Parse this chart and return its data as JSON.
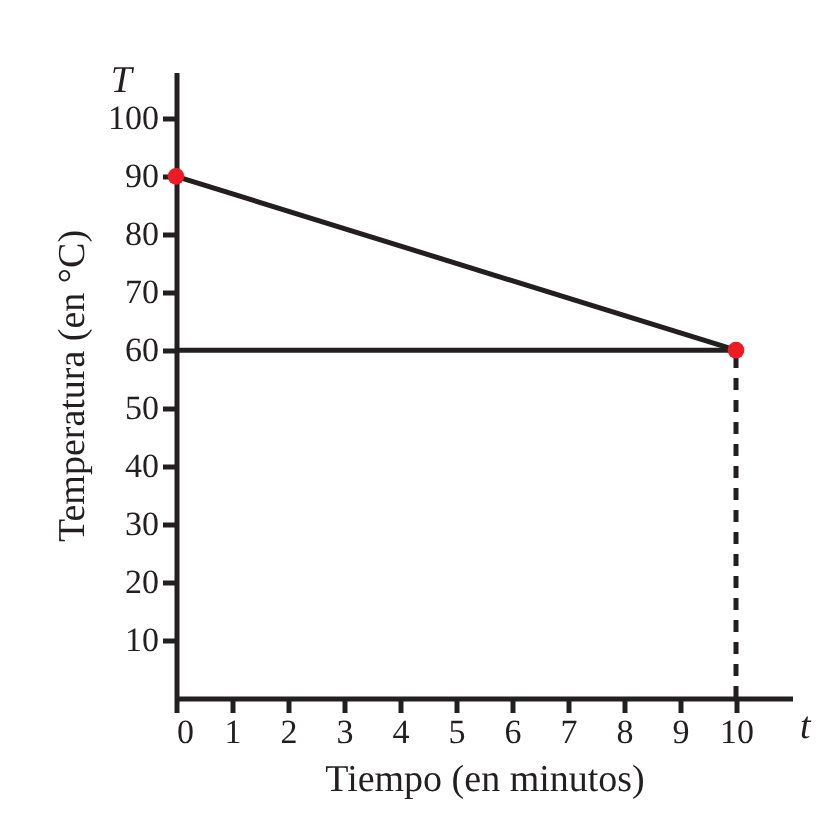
{
  "chart_data": {
    "type": "line",
    "xlabel": "Tiempo (en minutos)",
    "ylabel": "Temperatura (en °C)",
    "annotations": [
      "T",
      "t"
    ],
    "xlim": [
      0,
      11
    ],
    "ylim": [
      0,
      108
    ],
    "xticks": [
      0,
      1,
      2,
      3,
      4,
      5,
      6,
      7,
      8,
      9,
      10
    ],
    "yticks": [
      10,
      20,
      30,
      40,
      50,
      60,
      70,
      80,
      90,
      100
    ],
    "grid": false,
    "x": [
      0,
      10
    ],
    "series": [
      {
        "values": [
          90,
          60
        ],
        "color": "#231f20",
        "line_style": "solid"
      },
      {
        "values": [
          60,
          60
        ],
        "color": "#231f20",
        "line_style": "solid"
      },
      {
        "x": [
          10,
          10
        ],
        "values": [
          0,
          60
        ],
        "color": "#231f20",
        "line_style": "dashed"
      },
      {
        "type": "scatter",
        "values": [
          90,
          60
        ],
        "color": "#ed1c24",
        "marker": "circle"
      }
    ]
  }
}
